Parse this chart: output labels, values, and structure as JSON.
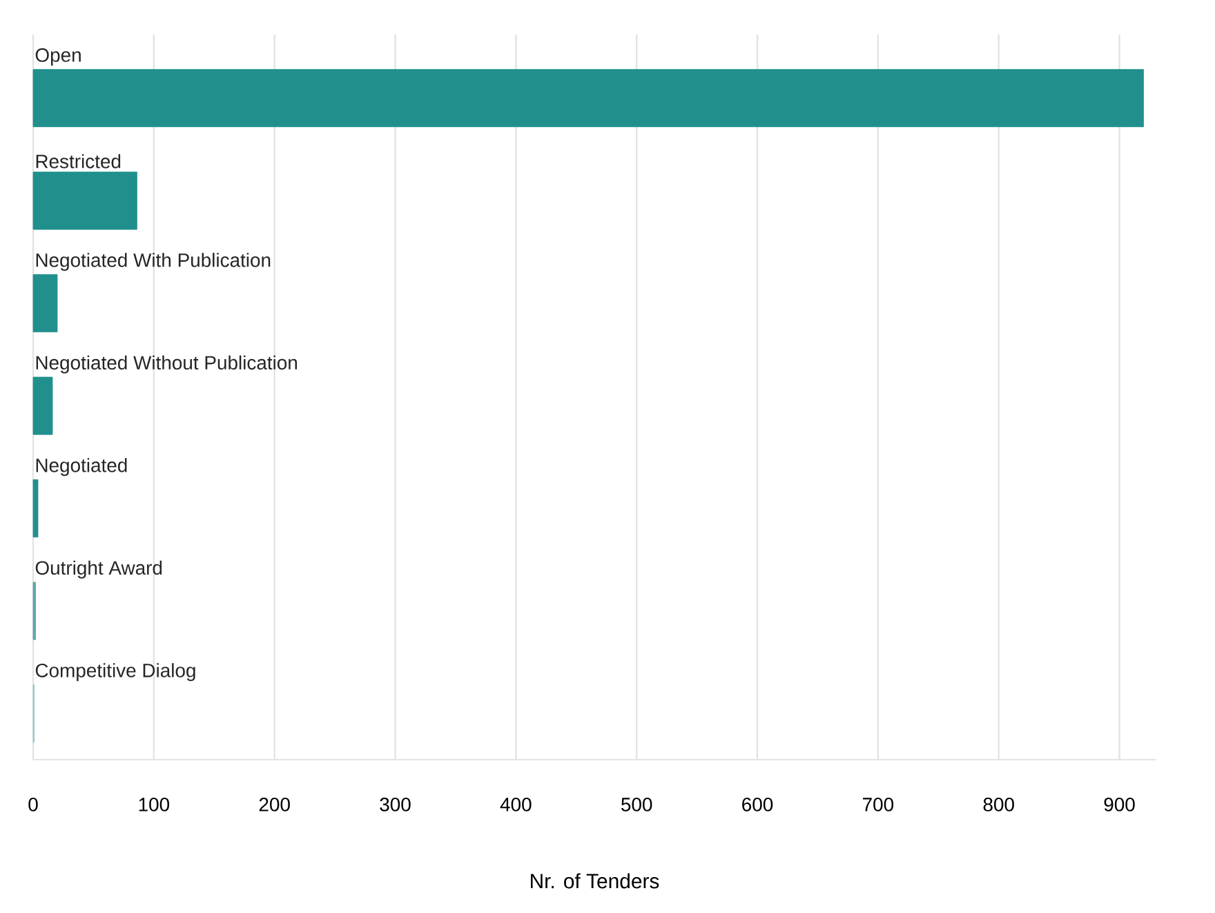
{
  "chart_data": {
    "type": "bar",
    "orientation": "horizontal",
    "xlabel": "Nr. of Tenders",
    "categories": [
      "Open",
      "Restricted",
      "Negotiated With Publication",
      "Negotiated Without Publication",
      "Negotiated",
      "Outright Award",
      "Competitive Dialog"
    ],
    "values": [
      920,
      86,
      20,
      16,
      4,
      2,
      1
    ],
    "colors": [
      "#21908d",
      "#21908d",
      "#21908d",
      "#21908d",
      "#21908d",
      "#5aa8a8",
      "#9cc8c8"
    ],
    "xlim": [
      0,
      930
    ],
    "xticks": [
      0,
      100,
      200,
      300,
      400,
      500,
      600,
      700,
      800,
      900
    ],
    "grid": "x"
  }
}
